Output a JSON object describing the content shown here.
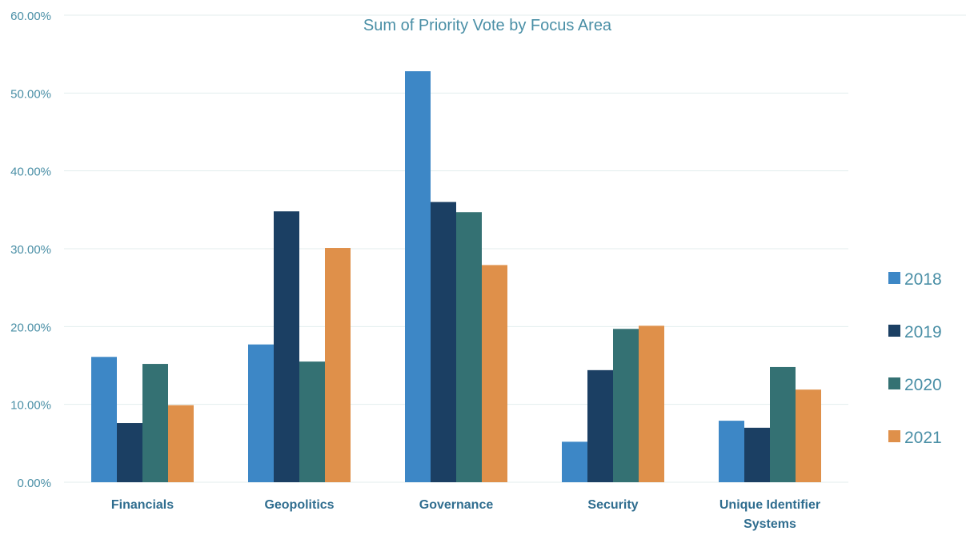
{
  "chart_data": {
    "type": "bar",
    "title": "Sum of Priority Vote by Focus Area",
    "categories": [
      "Financials",
      "Geopolitics",
      "Governance",
      "Security",
      "Unique Identifier Systems"
    ],
    "series": [
      {
        "name": "2018",
        "color": "#3d87c6",
        "values": [
          16.1,
          17.7,
          52.8,
          5.2,
          7.9
        ]
      },
      {
        "name": "2019",
        "color": "#1b3f63",
        "values": [
          7.6,
          34.8,
          36.0,
          14.4,
          7.0
        ]
      },
      {
        "name": "2020",
        "color": "#347173",
        "values": [
          15.2,
          15.5,
          34.7,
          19.7,
          14.8
        ]
      },
      {
        "name": "2021",
        "color": "#df904a",
        "values": [
          9.9,
          30.1,
          27.9,
          20.1,
          11.9
        ]
      }
    ],
    "y_ticks": [
      "0.00%",
      "10.00%",
      "20.00%",
      "30.00%",
      "40.00%",
      "50.00%",
      "60.00%"
    ],
    "ylim": [
      0,
      60
    ],
    "y_unit": "percent",
    "grid": true,
    "legend_position": "right",
    "colors": {
      "title": "#4a8fa6",
      "axis_text": "#4a8fa6",
      "category_text": "#2f6d8f",
      "gridline": "#e3eeee"
    }
  }
}
